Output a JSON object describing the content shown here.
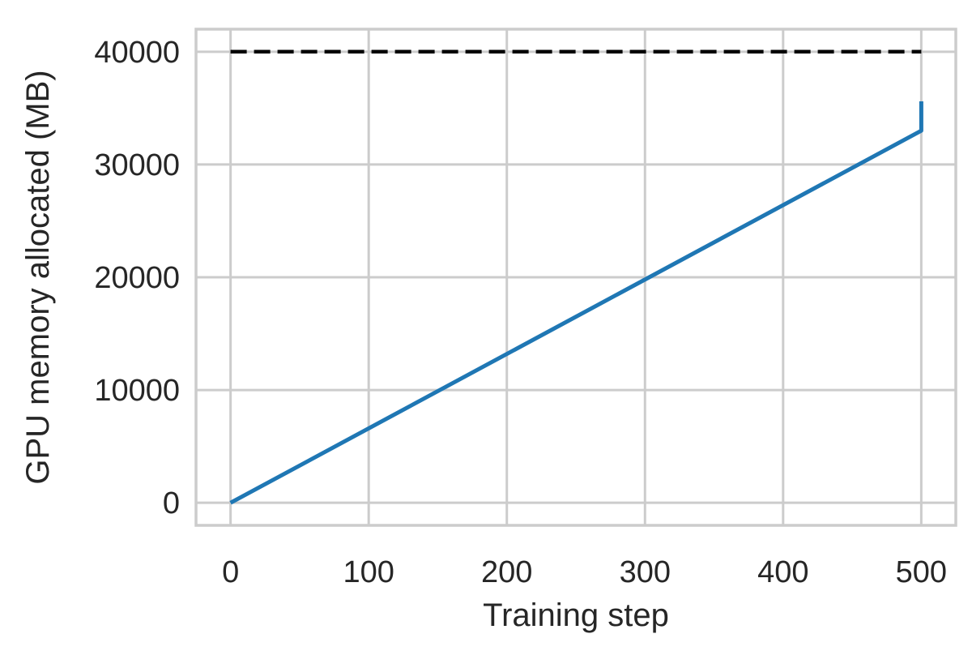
{
  "chart_data": {
    "type": "line",
    "xlabel": "Training step",
    "ylabel": "GPU memory allocated (MB)",
    "xlim": [
      -25,
      525
    ],
    "ylim": [
      -2000,
      42000
    ],
    "xticks": [
      0,
      100,
      200,
      300,
      400,
      500
    ],
    "yticks": [
      0,
      10000,
      20000,
      30000,
      40000
    ],
    "grid": true,
    "series": [
      {
        "style": "solid",
        "color": "#1f77b4",
        "x": [
          0,
          500,
          500
        ],
        "y": [
          0,
          33000,
          35600
        ]
      },
      {
        "style": "dashed",
        "color": "#000000",
        "x": [
          0,
          500
        ],
        "y": [
          40000,
          40000
        ]
      }
    ]
  }
}
